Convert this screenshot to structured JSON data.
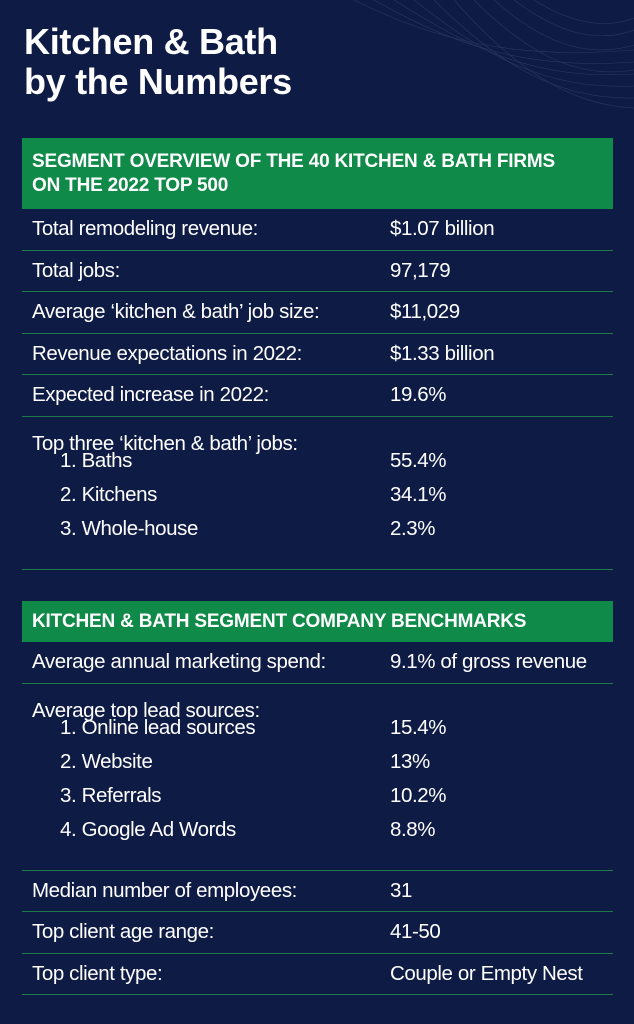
{
  "title": {
    "line1": "Kitchen & Bath",
    "line2": "by the Numbers"
  },
  "overview": {
    "header_line1": "SEGMENT OVERVIEW OF THE 40 KITCHEN & BATH FIRMS",
    "header_line2": "ON THE 2022 TOP 500",
    "rows": [
      {
        "label": "Total remodeling revenue:",
        "value": "$1.07 billion"
      },
      {
        "label": "Total jobs:",
        "value": "97,179"
      },
      {
        "label": "Average ‘kitchen & bath’ job size:",
        "value": "$11,029"
      },
      {
        "label": "Revenue expectations in 2022:",
        "value": "$1.33 billion"
      },
      {
        "label": "Expected increase in 2022:",
        "value": "19.6%"
      }
    ],
    "top_jobs": {
      "label": "Top three ‘kitchen & bath’ jobs:",
      "items": [
        {
          "label": "1. Baths",
          "value": "55.4%"
        },
        {
          "label": "2. Kitchens",
          "value": "34.1%"
        },
        {
          "label": "3. Whole-house",
          "value": "2.3%"
        }
      ]
    }
  },
  "benchmarks": {
    "header": "KITCHEN & BATH SEGMENT COMPANY BENCHMARKS",
    "marketing": {
      "label": "Average annual marketing spend:",
      "value": "9.1% of gross revenue"
    },
    "lead_sources": {
      "label": "Average top lead sources:",
      "items": [
        {
          "label": "1. Online lead sources",
          "value": "15.4%"
        },
        {
          "label": "2. Website",
          "value": "13%"
        },
        {
          "label": "3. Referrals",
          "value": "10.2%"
        },
        {
          "label": "4. Google Ad Words",
          "value": "8.8%"
        }
      ]
    },
    "rows": [
      {
        "label": "Median number of employees:",
        "value": "31"
      },
      {
        "label": "Top client age range:",
        "value": "41-50"
      },
      {
        "label": "Top client type:",
        "value": "Couple or Empty Nest"
      }
    ]
  }
}
